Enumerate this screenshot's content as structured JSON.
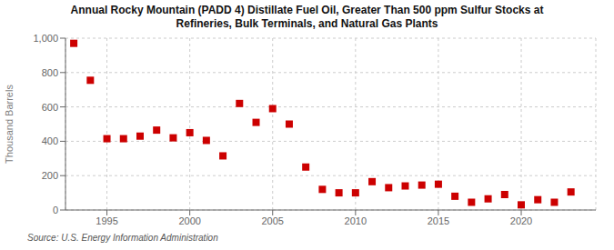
{
  "chart_data": {
    "type": "scatter",
    "title": "Annual Rocky Mountain (PADD 4) Distillate Fuel Oil, Greater Than 500 ppm Sulfur Stocks at\nRefineries, Bulk Terminals, and Natural Gas Plants",
    "ylabel": "Thousand Barrels",
    "source": "Source: U.S. Energy Information Administration",
    "x": [
      1993,
      1994,
      1995,
      1996,
      1997,
      1998,
      1999,
      2000,
      2001,
      2002,
      2003,
      2004,
      2005,
      2006,
      2007,
      2008,
      2009,
      2010,
      2011,
      2012,
      2013,
      2014,
      2015,
      2016,
      2017,
      2018,
      2019,
      2020,
      2021,
      2022,
      2023
    ],
    "values": [
      970,
      755,
      415,
      415,
      430,
      465,
      420,
      450,
      405,
      315,
      620,
      510,
      590,
      500,
      250,
      120,
      100,
      100,
      165,
      130,
      140,
      145,
      150,
      80,
      45,
      65,
      90,
      30,
      60,
      45,
      105
    ],
    "color": "#cc0000",
    "marker": "square",
    "grid": true,
    "xlim": [
      1992.5,
      2024.5
    ],
    "xticks": [
      1995,
      2000,
      2005,
      2010,
      2015,
      2020
    ],
    "ylim": [
      0,
      1000
    ],
    "yticks": [
      0,
      200,
      400,
      600,
      800,
      {
        "value": 1000,
        "label": "1,000"
      }
    ]
  }
}
